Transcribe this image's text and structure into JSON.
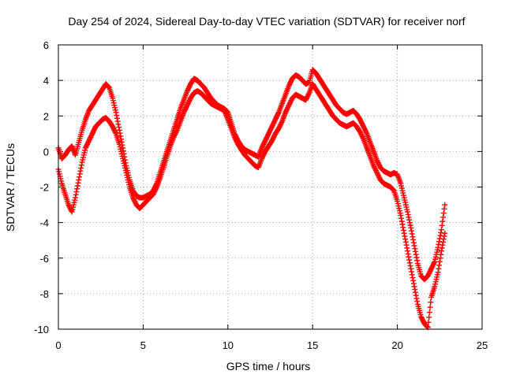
{
  "chart_data": {
    "type": "scatter",
    "title": "Day 254 of 2024, Sidereal Day-to-day VTEC variation (SDTVAR) for receiver norf",
    "xlabel": "GPS time / hours",
    "ylabel": "SDTVAR / TECUs",
    "xlim": [
      0,
      25
    ],
    "ylim": [
      -10,
      6
    ],
    "x_ticks": [
      "0",
      "5",
      "10",
      "15",
      "20",
      "25"
    ],
    "y_ticks": [
      "-10",
      "-8",
      "-6",
      "-4",
      "-2",
      "0",
      "2",
      "4",
      "6"
    ],
    "grid": true,
    "marker": "+",
    "color": "#ff0000",
    "series": [
      {
        "x": [
          0.0,
          0.2,
          0.4,
          0.6,
          0.8,
          1.0,
          1.2,
          1.4,
          1.6,
          1.8,
          2.0,
          2.2,
          2.4,
          2.6,
          2.8,
          3.0,
          3.2,
          3.4,
          3.6,
          3.8,
          4.0,
          4.2,
          4.4,
          4.6,
          4.8,
          5.0,
          5.2,
          5.4,
          5.6,
          5.8,
          6.0,
          6.2,
          6.4,
          6.6,
          6.8,
          7.0,
          7.2,
          7.4,
          7.6,
          7.8,
          8.0,
          8.2,
          8.4,
          8.6,
          8.8,
          9.0,
          9.2,
          9.4,
          9.6,
          9.8,
          10.0,
          10.2,
          10.4,
          10.6,
          10.8,
          11.0,
          11.2,
          11.4,
          11.6,
          11.8,
          12.0,
          12.2,
          12.4,
          12.6,
          12.8,
          13.0,
          13.2,
          13.4,
          13.6,
          13.8,
          14.0,
          14.2,
          14.4,
          14.6,
          14.8,
          15.0,
          15.2,
          15.4,
          15.6,
          15.8,
          16.0,
          16.2,
          16.4,
          16.6,
          16.8,
          17.0,
          17.2,
          17.4,
          17.6,
          17.8,
          18.0,
          18.2,
          18.4,
          18.6,
          18.8,
          19.0,
          19.2,
          19.4,
          19.6,
          19.8,
          20.0,
          20.2,
          20.4,
          20.6,
          20.8,
          21.0,
          21.2,
          21.4,
          21.6,
          21.8,
          22.0,
          22.2,
          22.4,
          22.6,
          22.8
        ],
        "y": [
          0.2,
          -0.4,
          -0.2,
          0.1,
          0.3,
          -0.2,
          0.5,
          1.2,
          1.8,
          2.3,
          2.6,
          2.9,
          3.2,
          3.5,
          3.8,
          3.6,
          3.0,
          2.2,
          1.2,
          0.2,
          -0.8,
          -1.6,
          -2.2,
          -2.5,
          -2.6,
          -2.6,
          -2.5,
          -2.4,
          -2.2,
          -1.8,
          -1.2,
          -0.6,
          0.0,
          0.6,
          1.2,
          1.8,
          2.4,
          2.9,
          3.4,
          3.8,
          4.1,
          4.0,
          3.8,
          3.6,
          3.3,
          3.0,
          2.8,
          2.6,
          2.5,
          2.4,
          2.2,
          1.6,
          1.0,
          0.6,
          0.3,
          0.1,
          0.0,
          -0.1,
          -0.2,
          -0.3,
          0.2,
          0.6,
          1.0,
          1.4,
          1.8,
          2.2,
          2.7,
          3.2,
          3.7,
          4.1,
          4.3,
          4.2,
          4.0,
          3.8,
          3.9,
          4.6,
          4.4,
          4.1,
          3.8,
          3.5,
          3.2,
          2.9,
          2.6,
          2.4,
          2.2,
          2.1,
          2.2,
          2.3,
          2.1,
          1.8,
          1.4,
          1.0,
          0.5,
          0.0,
          -0.5,
          -0.9,
          -1.1,
          -1.2,
          -1.3,
          -1.2,
          -1.3,
          -1.8,
          -2.6,
          -3.4,
          -4.3,
          -5.3,
          -6.3,
          -7.0,
          -7.2,
          -7.0,
          -6.6,
          -6.2,
          -5.4,
          -4.4,
          -3.0
        ]
      },
      {
        "x": [
          0.0,
          0.2,
          0.4,
          0.6,
          0.8,
          1.0,
          1.2,
          1.4,
          1.6,
          1.8,
          2.0,
          2.2,
          2.4,
          2.6,
          2.8,
          3.0,
          3.2,
          3.4,
          3.6,
          3.8,
          4.0,
          4.2,
          4.4,
          4.6,
          4.8,
          5.0,
          5.2,
          5.4,
          5.6,
          5.8,
          6.0,
          6.2,
          6.4,
          6.6,
          6.8,
          7.0,
          7.2,
          7.4,
          7.6,
          7.8,
          8.0,
          8.2,
          8.4,
          8.6,
          8.8,
          9.0,
          9.2,
          9.4,
          9.6,
          9.8,
          10.0,
          10.2,
          10.4,
          10.6,
          10.8,
          11.0,
          11.2,
          11.4,
          11.6,
          11.8,
          12.0,
          12.2,
          12.4,
          12.6,
          12.8,
          13.0,
          13.2,
          13.4,
          13.6,
          13.8,
          14.0,
          14.2,
          14.4,
          14.6,
          14.8,
          15.0,
          15.2,
          15.4,
          15.6,
          15.8,
          16.0,
          16.2,
          16.4,
          16.6,
          16.8,
          17.0,
          17.2,
          17.4,
          17.6,
          17.8,
          18.0,
          18.2,
          18.4,
          18.6,
          18.8,
          19.0,
          19.2,
          19.4,
          19.6,
          19.8,
          20.0,
          20.2,
          20.4,
          20.6,
          20.8,
          21.0,
          21.2,
          21.4,
          21.6,
          21.8,
          22.0,
          22.2,
          22.4,
          22.6,
          22.8
        ],
        "y": [
          -1.0,
          -1.8,
          -2.4,
          -3.0,
          -3.4,
          -2.6,
          -1.6,
          -0.6,
          0.2,
          0.6,
          1.0,
          1.4,
          1.6,
          1.8,
          1.9,
          1.7,
          1.4,
          1.0,
          0.4,
          -0.4,
          -1.2,
          -2.0,
          -2.6,
          -3.0,
          -3.2,
          -3.0,
          -2.8,
          -2.6,
          -2.4,
          -2.0,
          -1.5,
          -0.9,
          -0.3,
          0.3,
          0.8,
          1.2,
          1.7,
          2.2,
          2.6,
          3.0,
          3.3,
          3.4,
          3.3,
          3.1,
          2.9,
          2.7,
          2.6,
          2.5,
          2.4,
          2.3,
          1.8,
          1.3,
          0.8,
          0.4,
          0.1,
          -0.2,
          -0.4,
          -0.6,
          -0.8,
          -0.9,
          -0.4,
          0.0,
          0.3,
          0.6,
          1.0,
          1.3,
          1.7,
          2.2,
          2.6,
          3.0,
          3.2,
          3.1,
          3.0,
          2.9,
          3.3,
          3.8,
          3.5,
          3.2,
          2.9,
          2.6,
          2.3,
          2.0,
          1.8,
          1.6,
          1.5,
          1.4,
          1.5,
          1.6,
          1.4,
          1.1,
          0.7,
          0.2,
          -0.3,
          -0.8,
          -1.2,
          -1.6,
          -1.8,
          -1.9,
          -2.0,
          -2.2,
          -2.8,
          -3.6,
          -4.6,
          -5.6,
          -6.6,
          -7.6,
          -8.6,
          -9.3,
          -9.7,
          -9.9,
          -8.2,
          -7.6,
          -6.8,
          -5.6,
          -4.6
        ]
      }
    ]
  }
}
